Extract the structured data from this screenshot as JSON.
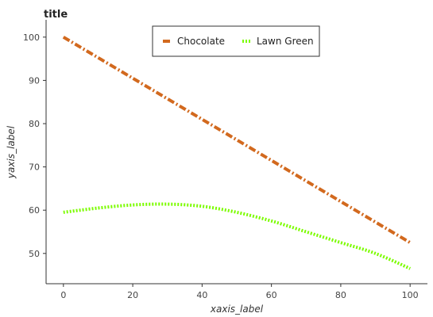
{
  "chart_data": {
    "type": "line",
    "title": "title",
    "xlabel": "xaxis_label",
    "ylabel": "yaxis_label",
    "xlim": [
      -5,
      105
    ],
    "ylim": [
      43,
      104
    ],
    "xticks": [
      0,
      20,
      40,
      60,
      80,
      100
    ],
    "yticks": [
      50,
      60,
      70,
      80,
      90,
      100
    ],
    "grid": false,
    "legend_position": "top-center",
    "series": [
      {
        "name": "Chocolate",
        "color": "#D2691E",
        "style": "dashdot",
        "x": [
          0,
          20,
          40,
          60,
          80,
          100
        ],
        "y": [
          100,
          90.5,
          81,
          71.5,
          62,
          52.5
        ]
      },
      {
        "name": "Lawn Green",
        "color": "#7CFC00",
        "style": "dotted",
        "x": [
          0,
          10,
          20,
          30,
          40,
          50,
          60,
          70,
          80,
          90,
          100
        ],
        "y": [
          59.5,
          60.5,
          61.2,
          61.4,
          60.9,
          59.5,
          57.5,
          55.0,
          52.5,
          50.0,
          46.5
        ]
      }
    ]
  }
}
